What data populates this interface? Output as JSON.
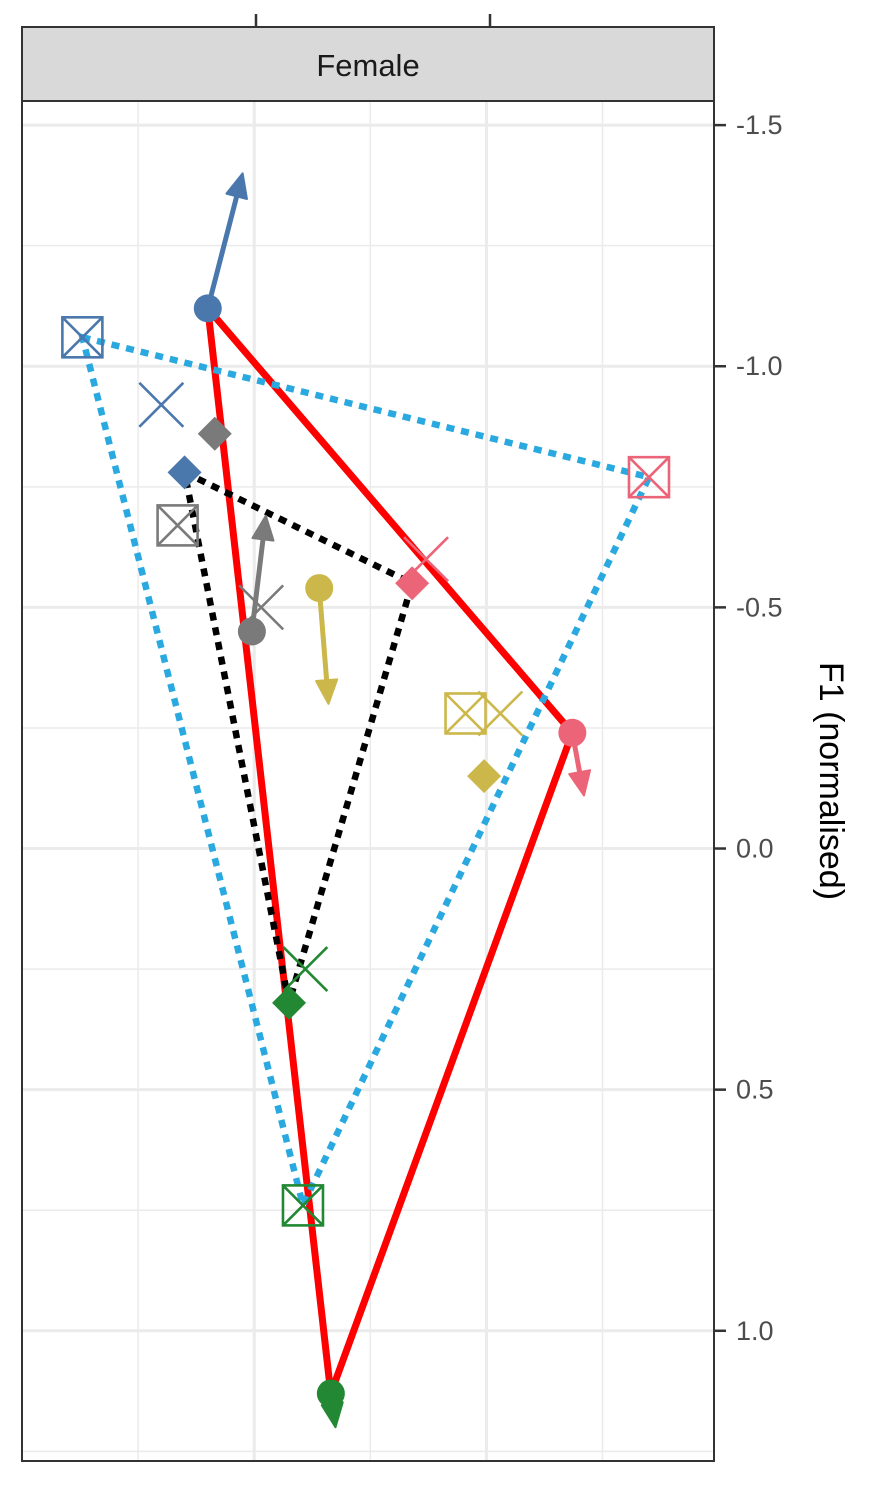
{
  "panel": {
    "strip_label": "Female"
  },
  "colors": {
    "blue": "#4a78ad",
    "pink": "#ec6477",
    "yellow": "#ccb74a",
    "green": "#228833",
    "grey": "#7a7a7a",
    "red": "#ff0000",
    "cyan": "#29a9e0",
    "black": "#000000",
    "strip_bg": "#d9d9d9",
    "grid": "#ebebeb"
  },
  "chart_data": {
    "type": "scatter",
    "title": "",
    "ylabel": "F1 (normalised)",
    "y_reversed": true,
    "ylim": [
      -1.55,
      1.27
    ],
    "xlim": [
      -0.5,
      2.48
    ],
    "y_ticks": [
      -1.5,
      -1.0,
      -0.5,
      0.0,
      0.5,
      1.0
    ],
    "y_tick_labels": [
      "-1.5",
      "-1.0",
      "-0.5",
      "0.0",
      "0.5",
      "1.0"
    ],
    "y_minor_ticks": [
      -1.25,
      -0.75,
      -0.25,
      0.25,
      0.75,
      1.25
    ],
    "x_ticks": [
      0.5,
      1.5
    ],
    "x_minor_ticks": [
      0.0,
      1.0,
      2.0
    ],
    "grid": true,
    "legend": "none",
    "points": [
      {
        "shape": "circle",
        "color": "blue",
        "x": 0.3,
        "y": -1.12
      },
      {
        "shape": "circle",
        "color": "pink",
        "x": 1.87,
        "y": -0.24
      },
      {
        "shape": "circle",
        "color": "yellow",
        "x": 0.78,
        "y": -0.54
      },
      {
        "shape": "circle",
        "color": "grey",
        "x": 0.49,
        "y": -0.45
      },
      {
        "shape": "circle",
        "color": "green",
        "x": 0.83,
        "y": 1.13
      },
      {
        "shape": "diamond",
        "color": "blue",
        "x": 0.2,
        "y": -0.78
      },
      {
        "shape": "diamond",
        "color": "grey",
        "x": 0.33,
        "y": -0.86
      },
      {
        "shape": "diamond",
        "color": "pink",
        "x": 1.18,
        "y": -0.55
      },
      {
        "shape": "diamond",
        "color": "yellow",
        "x": 1.49,
        "y": -0.15
      },
      {
        "shape": "diamond",
        "color": "green",
        "x": 0.65,
        "y": 0.32
      },
      {
        "shape": "x",
        "color": "blue",
        "x": 0.1,
        "y": -0.92
      },
      {
        "shape": "x",
        "color": "grey",
        "x": 0.53,
        "y": -0.5
      },
      {
        "shape": "x",
        "color": "pink",
        "x": 1.24,
        "y": -0.6
      },
      {
        "shape": "x",
        "color": "yellow",
        "x": 1.56,
        "y": -0.28
      },
      {
        "shape": "x",
        "color": "green",
        "x": 0.72,
        "y": 0.25
      },
      {
        "shape": "boxx",
        "color": "blue",
        "x": -0.24,
        "y": -1.06
      },
      {
        "shape": "boxx",
        "color": "grey",
        "x": 0.17,
        "y": -0.67
      },
      {
        "shape": "boxx",
        "color": "pink",
        "x": 2.2,
        "y": -0.77
      },
      {
        "shape": "boxx",
        "color": "yellow",
        "x": 1.41,
        "y": -0.28
      },
      {
        "shape": "boxx",
        "color": "green",
        "x": 0.71,
        "y": 0.74
      }
    ],
    "arrows": [
      {
        "color": "blue",
        "from": [
          0.3,
          -1.12
        ],
        "to": [
          0.45,
          -1.4
        ]
      },
      {
        "color": "grey",
        "from": [
          0.49,
          -0.45
        ],
        "to": [
          0.55,
          -0.69
        ]
      },
      {
        "color": "yellow",
        "from": [
          0.78,
          -0.54
        ],
        "to": [
          0.82,
          -0.3
        ]
      },
      {
        "color": "pink",
        "from": [
          1.87,
          -0.24
        ],
        "to": [
          1.92,
          -0.11
        ]
      },
      {
        "color": "green",
        "from": [
          0.83,
          1.13
        ],
        "to": [
          0.85,
          1.2
        ]
      }
    ],
    "polygons": [
      {
        "color": "red",
        "dash": "solid",
        "vertices": [
          [
            0.3,
            -1.12
          ],
          [
            1.87,
            -0.24
          ],
          [
            0.83,
            1.13
          ]
        ]
      },
      {
        "color": "cyan",
        "dash": "dotted",
        "vertices": [
          [
            -0.24,
            -1.06
          ],
          [
            2.2,
            -0.77
          ],
          [
            0.71,
            0.74
          ]
        ]
      },
      {
        "color": "black",
        "dash": "dotted",
        "vertices": [
          [
            0.2,
            -0.78
          ],
          [
            1.18,
            -0.55
          ],
          [
            0.65,
            0.32
          ]
        ]
      }
    ]
  }
}
